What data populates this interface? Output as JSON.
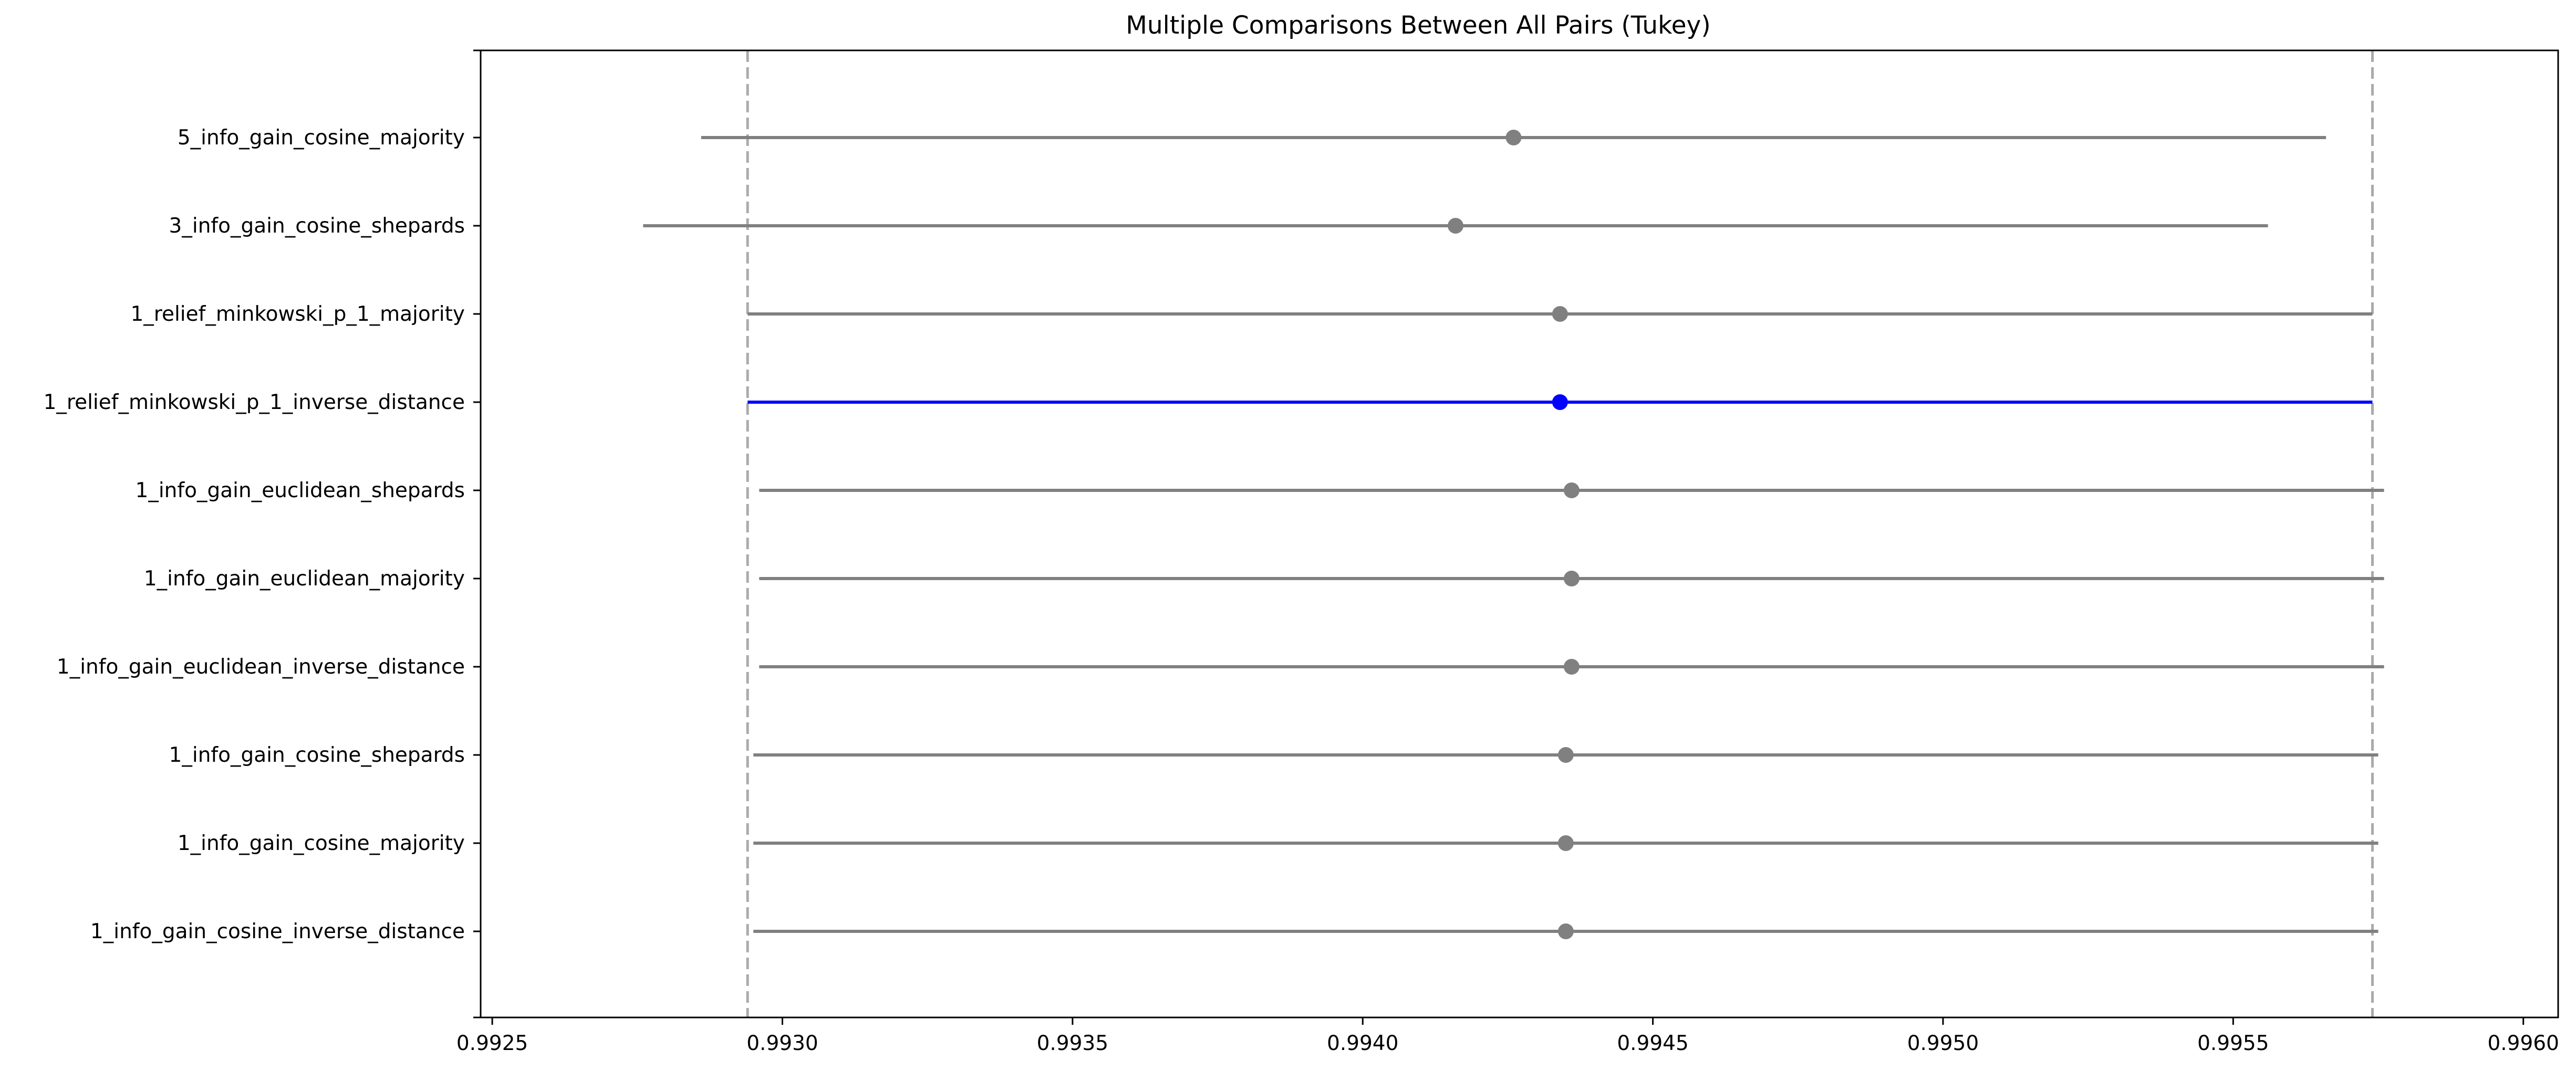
{
  "chart_data": {
    "type": "errorbar",
    "title": "Multiple Comparisons Between All Pairs (Tukey)",
    "xlabel": "",
    "ylabel": "",
    "xlim": [
      0.99248,
      0.99606
    ],
    "xticks": [
      "0.9925",
      "0.9930",
      "0.9935",
      "0.9940",
      "0.9945",
      "0.9950",
      "0.9955",
      "0.9960"
    ],
    "xtick_values": [
      0.9925,
      0.993,
      0.9935,
      0.994,
      0.9945,
      0.995,
      0.9955,
      0.996
    ],
    "reference_lines": [
      0.99294,
      0.99574
    ],
    "grid": false,
    "series": [
      {
        "label": "5_info_gain_cosine_majority",
        "mean": 0.99426,
        "low": 0.99286,
        "high": 0.99566,
        "highlight": false
      },
      {
        "label": "3_info_gain_cosine_shepards",
        "mean": 0.99416,
        "low": 0.99276,
        "high": 0.99556,
        "highlight": false
      },
      {
        "label": "1_relief_minkowski_p_1_majority",
        "mean": 0.99434,
        "low": 0.99294,
        "high": 0.99574,
        "highlight": false
      },
      {
        "label": "1_relief_minkowski_p_1_inverse_distance",
        "mean": 0.99434,
        "low": 0.99294,
        "high": 0.99574,
        "highlight": true
      },
      {
        "label": "1_info_gain_euclidean_shepards",
        "mean": 0.99436,
        "low": 0.99296,
        "high": 0.99576,
        "highlight": false
      },
      {
        "label": "1_info_gain_euclidean_majority",
        "mean": 0.99436,
        "low": 0.99296,
        "high": 0.99576,
        "highlight": false
      },
      {
        "label": "1_info_gain_euclidean_inverse_distance",
        "mean": 0.99436,
        "low": 0.99296,
        "high": 0.99576,
        "highlight": false
      },
      {
        "label": "1_info_gain_cosine_shepards",
        "mean": 0.99435,
        "low": 0.99295,
        "high": 0.99575,
        "highlight": false
      },
      {
        "label": "1_info_gain_cosine_majority",
        "mean": 0.99435,
        "low": 0.99295,
        "high": 0.99575,
        "highlight": false
      },
      {
        "label": "1_info_gain_cosine_inverse_distance",
        "mean": 0.99435,
        "low": 0.99295,
        "high": 0.99575,
        "highlight": false
      }
    ],
    "colors": {
      "default": "#808080",
      "highlight": "#0000ff",
      "reference": "#aaaaaa",
      "axes": "#000000"
    }
  }
}
